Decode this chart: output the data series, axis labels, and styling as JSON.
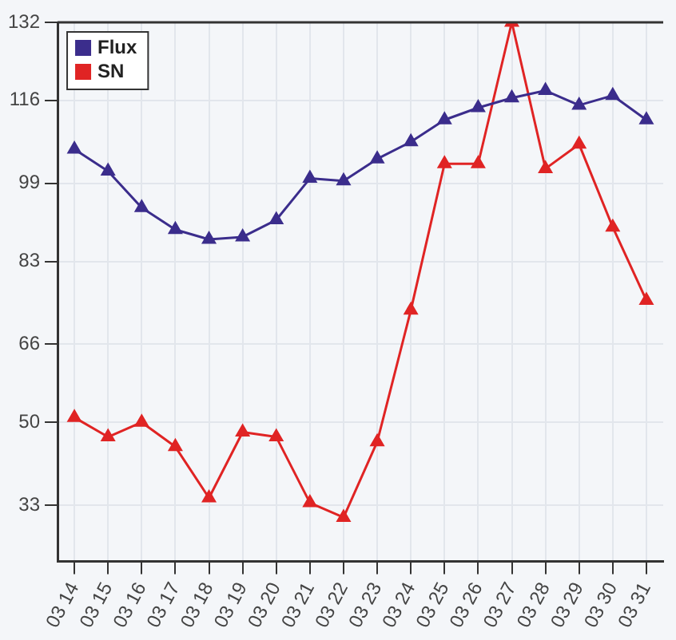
{
  "chart_data": {
    "type": "line",
    "categories": [
      "03 14",
      "03 15",
      "03 16",
      "03 17",
      "03 18",
      "03 19",
      "03 20",
      "03 21",
      "03 22",
      "03 23",
      "03 24",
      "03 25",
      "03 26",
      "03 27",
      "03 28",
      "03 29",
      "03 30",
      "03 31"
    ],
    "series": [
      {
        "name": "Flux",
        "color": "#3b2d8c",
        "values": [
          106,
          101.5,
          94,
          89.5,
          87.5,
          88,
          91.5,
          100,
          99.5,
          104,
          107.5,
          112,
          114.5,
          116.5,
          118,
          115,
          117,
          112
        ]
      },
      {
        "name": "SN",
        "color": "#e02424",
        "values": [
          51,
          47,
          50,
          45,
          34.5,
          48,
          47,
          33.5,
          30.5,
          46,
          73,
          103,
          103,
          132,
          102,
          107,
          90,
          75
        ]
      }
    ],
    "ylim": [
      21.5,
      132
    ],
    "yticks": [
      33,
      50,
      66,
      83,
      99,
      116,
      132
    ],
    "grid": true,
    "legend": "top left",
    "marker": "triangle",
    "line_style": "solid"
  }
}
